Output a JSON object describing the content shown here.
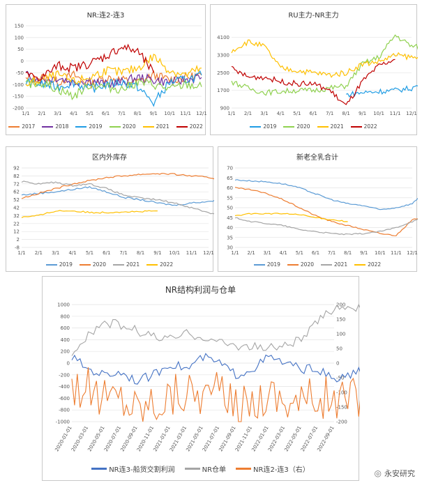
{
  "watermark": "永安研究",
  "colors": {
    "y2017": "#ED7D31",
    "y2018": "#7030A0",
    "y2019": "#1F9CE4",
    "y2020": "#8FD14F",
    "y2021": "#FFC000",
    "y2022": "#C00000",
    "blue": "#5B9BD5",
    "orange": "#ED7D31",
    "gray": "#A5A5A5",
    "yellow": "#FFC000",
    "navy": "#4472C4"
  },
  "chart_data": [
    {
      "type": "line",
      "title": "NR:连2-连3",
      "x_ticks": [
        "1/1",
        "2/1",
        "3/1",
        "4/1",
        "5/1",
        "6/1",
        "7/1",
        "8/1",
        "9/1",
        "10/1",
        "11/1",
        "12/1"
      ],
      "ylim": [
        -200,
        150
      ],
      "y_ticks": [
        150,
        100,
        50,
        0,
        -50,
        -100,
        -150,
        -200
      ],
      "legend": [
        "2017",
        "2018",
        "2019",
        "2020",
        "2021",
        "2022"
      ],
      "series": [
        {
          "name": "2017",
          "color": "y2017",
          "values": [
            -80,
            -70,
            -90,
            -60,
            -100,
            -70,
            -80,
            -90,
            -60,
            -80,
            -70,
            -60
          ]
        },
        {
          "name": "2018",
          "color": "y2018",
          "values": [
            -60,
            -80,
            -70,
            -90,
            -80,
            -100,
            -90,
            -70,
            -80,
            -90,
            -80,
            -70
          ]
        },
        {
          "name": "2019",
          "color": "y2019",
          "values": [
            -90,
            -100,
            -110,
            -90,
            -120,
            -100,
            -90,
            -110,
            -180,
            -90,
            -80,
            -60
          ]
        },
        {
          "name": "2020",
          "color": "y2020",
          "values": [
            -100,
            -90,
            -120,
            -150,
            -100,
            -110,
            -120,
            -90,
            -100,
            -120,
            -100,
            -110
          ]
        },
        {
          "name": "2021",
          "color": "y2021",
          "values": [
            -100,
            -80,
            -60,
            -90,
            -70,
            -40,
            -50,
            -30,
            20,
            -40,
            -60,
            -30
          ]
        },
        {
          "name": "2022",
          "color": "y2022",
          "values": [
            -60,
            -70,
            -20,
            -30,
            -10,
            20,
            60,
            40,
            -50
          ]
        }
      ]
    },
    {
      "type": "line",
      "title": "RU主力-NR主力",
      "x_ticks": [
        "1/1",
        "2/1",
        "3/1",
        "4/1",
        "5/1",
        "6/1",
        "7/1",
        "8/1",
        "9/1",
        "10/1",
        "11/1",
        "12/1"
      ],
      "ylim": [
        900,
        4500
      ],
      "y_ticks": [
        4100,
        3300,
        2500,
        1700,
        900
      ],
      "legend": [
        "2019",
        "2020",
        "2021",
        "2022"
      ],
      "series": [
        {
          "name": "2019",
          "color": "y2019",
          "values": [
            null,
            null,
            null,
            null,
            null,
            null,
            null,
            1500,
            1600,
            1650,
            1700,
            1800,
            2100
          ]
        },
        {
          "name": "2020",
          "color": "y2020",
          "values": [
            2100,
            1800,
            1600,
            1650,
            1700,
            1700,
            1800,
            1900,
            2900,
            3200,
            4200,
            3700,
            3600
          ]
        },
        {
          "name": "2021",
          "color": "y2021",
          "values": [
            3500,
            3900,
            3700,
            2700,
            2600,
            2500,
            2400,
            2500,
            2900,
            3000,
            3300,
            3200,
            3100
          ]
        },
        {
          "name": "2022",
          "color": "y2022",
          "values": [
            2700,
            2300,
            2300,
            2100,
            2000,
            2000,
            1700,
            1000,
            2100,
            2800,
            3100
          ]
        }
      ]
    },
    {
      "type": "line",
      "title": "区内外库存",
      "x_ticks": [
        "1/1",
        "2/1",
        "3/1",
        "4/1",
        "5/1",
        "6/1",
        "7/1",
        "8/1",
        "9/1",
        "10/1",
        "11/1",
        "12/1"
      ],
      "ylim": [
        -8,
        92
      ],
      "y_ticks": [
        92,
        82,
        72,
        62,
        52,
        42,
        32,
        22,
        12,
        2,
        -8
      ],
      "legend": [
        "2019",
        "2020",
        "2021",
        "2022"
      ],
      "series": [
        {
          "name": "2019",
          "color": "blue",
          "values": [
            58,
            60,
            62,
            65,
            68,
            62,
            55,
            52,
            48,
            45,
            48,
            50,
            52
          ]
        },
        {
          "name": "2020",
          "color": "orange",
          "values": [
            54,
            60,
            66,
            72,
            76,
            80,
            82,
            84,
            85,
            84,
            82,
            80,
            76
          ]
        },
        {
          "name": "2021",
          "color": "gray",
          "values": [
            75,
            72,
            74,
            70,
            72,
            66,
            58,
            54,
            52,
            48,
            42,
            36,
            30
          ]
        },
        {
          "name": "2022",
          "color": "yellow",
          "values": [
            30,
            32,
            38,
            38,
            36,
            36,
            37,
            37,
            38
          ]
        }
      ]
    },
    {
      "type": "line",
      "title": "新老全乳合计",
      "x_ticks": [
        "1/1",
        "2/1",
        "3/1",
        "4/1",
        "5/1",
        "6/1",
        "7/1",
        "8/1",
        "9/1",
        "10/1",
        "11/1",
        "12/1"
      ],
      "ylim": [
        30,
        70
      ],
      "y_ticks": [
        70,
        65,
        60,
        55,
        50,
        45,
        40,
        35,
        30
      ],
      "legend": [
        "2019",
        "2020",
        "2021",
        "2022"
      ],
      "series": [
        {
          "name": "2019",
          "color": "blue",
          "values": [
            64,
            63.5,
            63,
            62,
            60,
            57,
            54,
            52,
            51,
            49,
            50,
            52,
            60
          ]
        },
        {
          "name": "2020",
          "color": "orange",
          "values": [
            60,
            59,
            57,
            54,
            50,
            46,
            43,
            41,
            39,
            37,
            36,
            44,
            45
          ]
        },
        {
          "name": "2021",
          "color": "gray",
          "values": [
            45,
            43,
            42,
            41,
            39,
            38,
            37,
            36.5,
            37,
            38,
            40,
            43,
            46
          ]
        },
        {
          "name": "2022",
          "color": "yellow",
          "values": [
            46,
            47,
            47,
            47,
            46.5,
            45,
            44,
            43
          ]
        }
      ]
    },
    {
      "type": "line",
      "title": "NR结构利润与仓单",
      "x_ticks": [
        "2020-01-01",
        "2020-03-01",
        "2020-05-01",
        "2020-07-01",
        "2020-09-01",
        "2020-11-01",
        "2021-01-01",
        "2021-03-01",
        "2021-05-01",
        "2021-07-01",
        "2021-09-01",
        "2021-11-01",
        "2022-01-01",
        "2022-03-01",
        "2022-05-01",
        "2022-07-01",
        "2022-09-01"
      ],
      "ylim_left": [
        -1000,
        1000
      ],
      "y_ticks_left": [
        1000,
        800,
        600,
        400,
        200,
        0,
        -200,
        -400,
        -600,
        -800,
        -1000
      ],
      "ylim_right": [
        -200,
        200
      ],
      "y_ticks_right": [
        200,
        150,
        100,
        50,
        0,
        -50,
        -100,
        -150,
        -200
      ],
      "legend": [
        "NR连3-船货交割利润",
        "NR仓单",
        "NR连2-连3（右）"
      ],
      "series": [
        {
          "name": "NR连3-船货交割利润",
          "color": "navy",
          "axis": "left",
          "values": [
            100,
            -100,
            -200,
            -150,
            -300,
            -200,
            0,
            -100,
            100,
            0,
            -200,
            -100,
            100,
            0,
            -100,
            -100,
            -300,
            -200,
            -100,
            -200,
            -300,
            -100,
            -50
          ]
        },
        {
          "name": "NR仓单",
          "color": "gray",
          "axis": "left",
          "values": [
            200,
            500,
            700,
            650,
            550,
            450,
            400,
            500,
            450,
            350,
            300,
            280,
            250,
            300,
            400,
            700,
            950,
            980,
            900,
            800,
            700,
            650,
            600
          ]
        },
        {
          "name": "NR连2-连3（右）",
          "color": "orange",
          "axis": "right",
          "values": [
            -70,
            -90,
            -120,
            -110,
            -150,
            -130,
            -110,
            -90,
            -100,
            -110,
            -150,
            -130,
            -100,
            -120,
            -130,
            -110,
            -130,
            -120,
            -90,
            -50,
            20,
            40,
            -30
          ]
        }
      ]
    }
  ]
}
